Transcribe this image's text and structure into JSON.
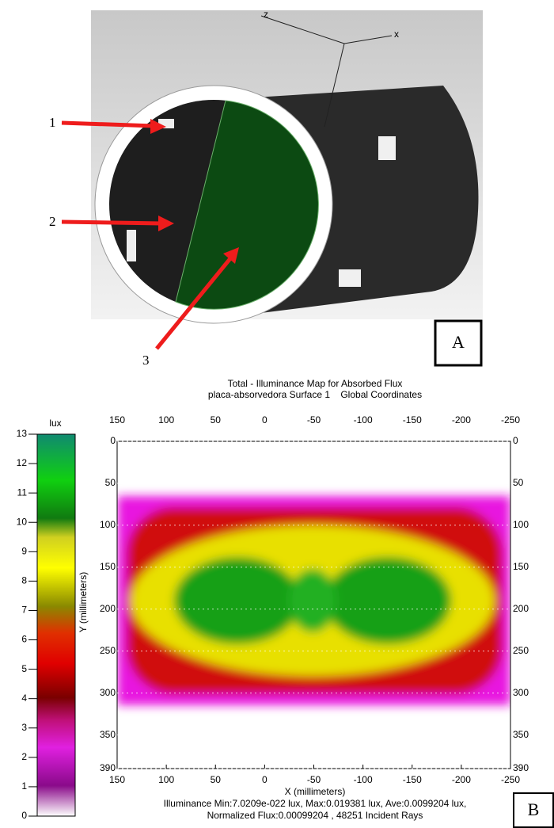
{
  "panel_a": {
    "axis_labels": [
      "z",
      "x"
    ],
    "callouts": [
      "1",
      "2",
      "3"
    ],
    "label": "A"
  },
  "panel_b": {
    "title": "Total - Illuminance Map for Absorbed Flux",
    "subtitle": "placa-absorvedora Surface 1    Global Coordinates",
    "colorbar": {
      "unit": "lux",
      "lim": [
        0,
        13
      ],
      "ticks": [
        0,
        1,
        2,
        3,
        4,
        5,
        6,
        7,
        8,
        9,
        10,
        11,
        12,
        13
      ]
    },
    "xlim": [
      150,
      -250
    ],
    "xticks": [
      150,
      100,
      50,
      0,
      -50,
      -100,
      -150,
      -200,
      -250
    ],
    "ylim": [
      0,
      390
    ],
    "yticks": [
      0,
      50,
      100,
      150,
      200,
      250,
      300,
      350,
      390
    ],
    "x_label": "X (millimeters)",
    "y_label": "Y (millimeters)",
    "footer": [
      "Illuminance Min:7.0209e-022 lux, Max:0.019381 lux, Ave:0.0099204 lux,",
      "Normalized Flux:0.00099204 , 48251 Incident Rays"
    ],
    "label": "B"
  }
}
